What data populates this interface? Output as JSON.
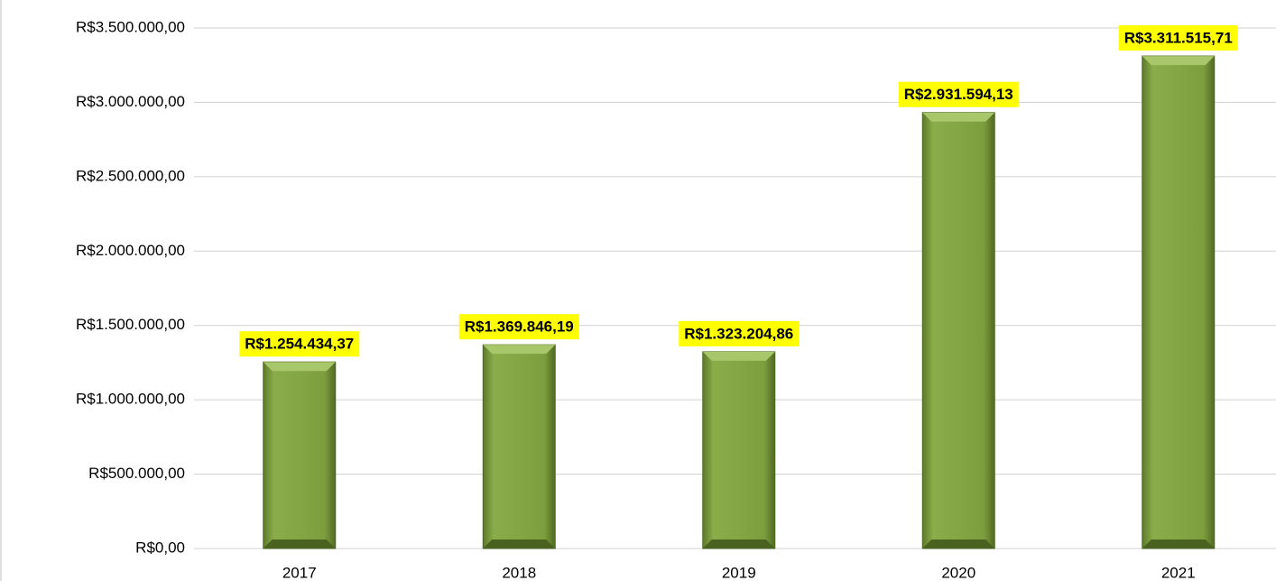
{
  "chart_data": {
    "type": "bar",
    "categories": [
      "2017",
      "2018",
      "2019",
      "2020",
      "2021"
    ],
    "values": [
      1254434.37,
      1369846.19,
      1323204.86,
      2931594.13,
      3311515.71
    ],
    "value_labels": [
      "R$1.254.434,37",
      "R$1.369.846,19",
      "R$1.323.204,86",
      "R$2.931.594,13",
      "R$3.311.515,71"
    ],
    "color": "#7a9a3a",
    "ylim": [
      0,
      3500000
    ],
    "yticks": [
      {
        "value": 0,
        "label": "R$0,00"
      },
      {
        "value": 500000,
        "label": "R$500.000,00"
      },
      {
        "value": 1000000,
        "label": "R$1.000.000,00"
      },
      {
        "value": 1500000,
        "label": "R$1.500.000,00"
      },
      {
        "value": 2000000,
        "label": "R$2.000.000,00"
      },
      {
        "value": 2500000,
        "label": "R$2.500.000,00"
      },
      {
        "value": 3000000,
        "label": "R$3.000.000,00"
      },
      {
        "value": 3500000,
        "label": "R$3.500.000,00"
      }
    ],
    "grid": true
  }
}
